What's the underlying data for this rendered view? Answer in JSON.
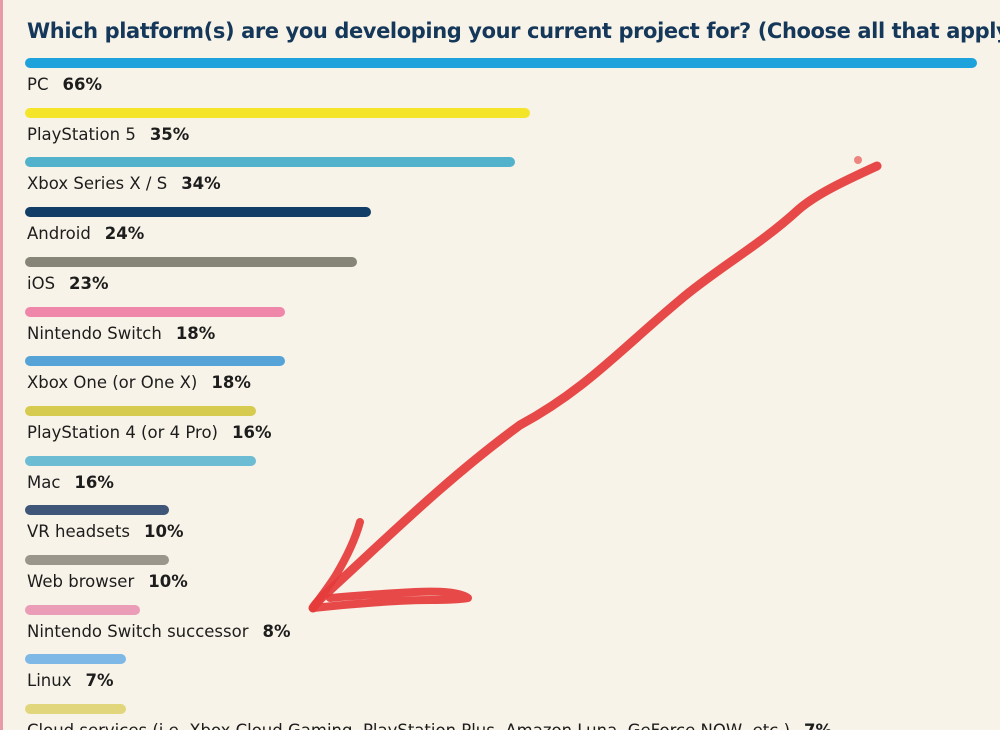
{
  "chart_data": {
    "type": "bar",
    "orientation": "horizontal",
    "title": "Which platform(s) are you developing your current project for? (Choose all that apply)",
    "value_suffix": "%",
    "xlim": [
      0,
      66
    ],
    "categories": [
      "PC",
      "PlayStation 5",
      "Xbox Series X / S",
      "Android",
      "iOS",
      "Nintendo Switch",
      "Xbox One (or One X)",
      "PlayStation 4 (or 4 Pro)",
      "Mac",
      "VR headsets",
      "Web browser",
      "Nintendo Switch successor",
      "Linux",
      "Cloud services (i.e. Xbox Cloud Gaming, PlayStation Plus, Amazon Luna, GeForce NOW, etc.)"
    ],
    "values": [
      66,
      35,
      34,
      24,
      23,
      18,
      18,
      16,
      16,
      10,
      10,
      8,
      7,
      7
    ],
    "colors": [
      "#1ea2dc",
      "#f4e52a",
      "#52b2cc",
      "#113d66",
      "#878478",
      "#ee87aa",
      "#56a3d8",
      "#d6ca4f",
      "#6cbcd3",
      "#3f5678",
      "#9a968b",
      "#eb9cb6",
      "#7db8e6",
      "#e2d67c"
    ]
  },
  "annotation": {
    "type": "hand-drawn-arrow",
    "color": "#e53b3b"
  }
}
